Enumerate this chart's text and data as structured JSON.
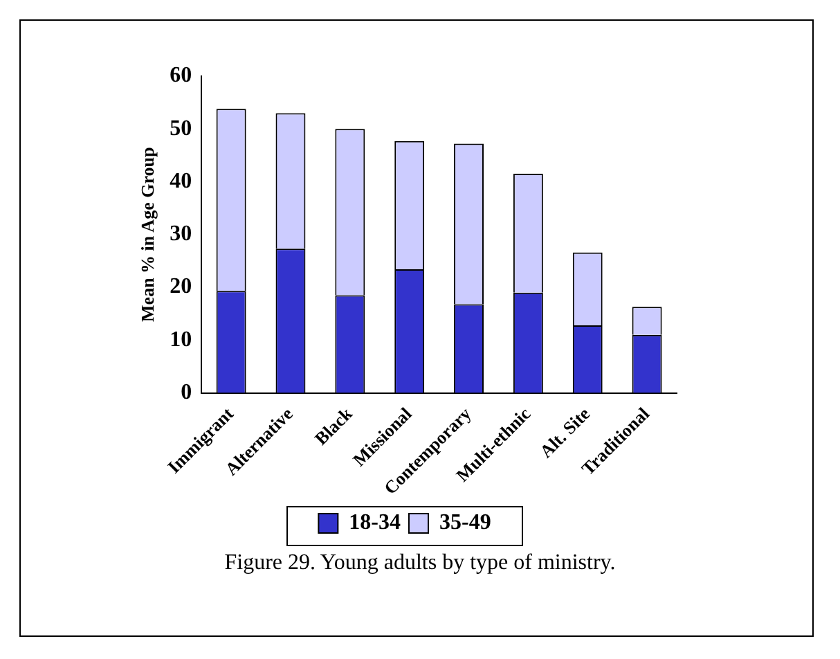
{
  "chart_data": {
    "type": "bar",
    "stacked": true,
    "categories": [
      "Immigrant",
      "Alternative",
      "Black",
      "Missional",
      "Contemporary",
      "Multi-ethnic",
      "Alt. Site",
      "Traditional"
    ],
    "series": [
      {
        "name": "18-34",
        "color": "#3333cc",
        "values": [
          19.3,
          27.3,
          18.5,
          23.4,
          16.8,
          19.0,
          12.8,
          11.0
        ]
      },
      {
        "name": "35-49",
        "color": "#ccccff",
        "values": [
          34.5,
          25.7,
          31.5,
          24.3,
          30.4,
          22.5,
          13.8,
          5.3
        ]
      }
    ],
    "ylabel": "Mean % in Age Group",
    "ylim": [
      0,
      60
    ],
    "yticks": [
      0,
      10,
      20,
      30,
      40,
      50,
      60
    ],
    "grid": false,
    "legend": "bottom",
    "annotations": [
      "Figure 29.  Young adults by type of ministry."
    ]
  }
}
